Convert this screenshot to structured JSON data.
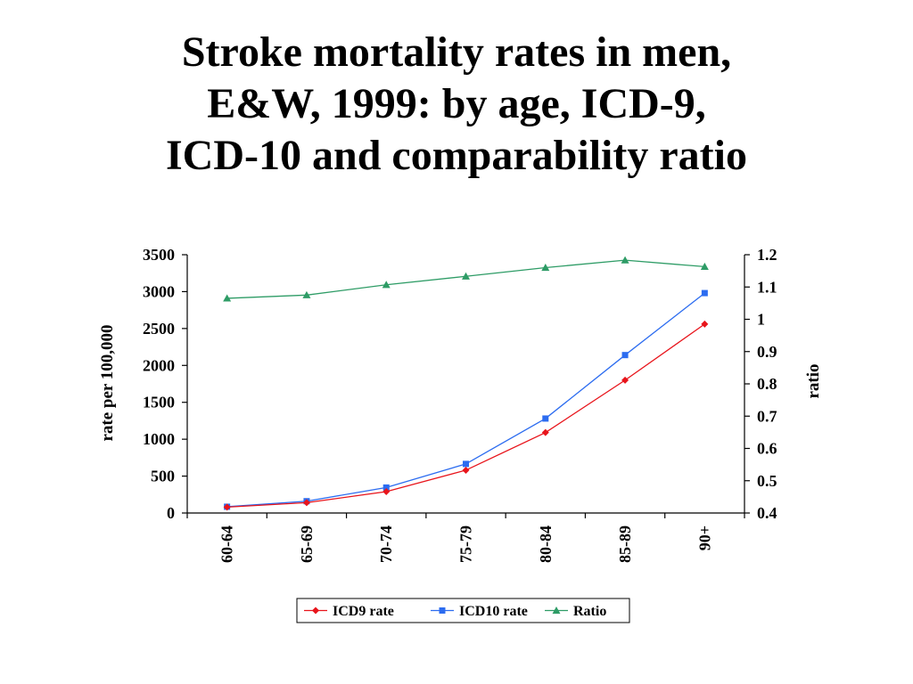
{
  "slide": {
    "title_lines": [
      "Stroke mortality rates in men,",
      "E&W, 1999: by age, ICD-9,",
      "ICD-10 and comparability ratio"
    ]
  },
  "chart_data": {
    "type": "line",
    "categories": [
      "60-64",
      "65-69",
      "70-74",
      "75-79",
      "80-84",
      "85-89",
      "90+"
    ],
    "y_left": {
      "label": "rate per 100,000",
      "range": [
        0,
        3500
      ],
      "ticks": [
        "0",
        "500",
        "1000",
        "1500",
        "2000",
        "2500",
        "3000",
        "3500"
      ]
    },
    "y_right": {
      "label": "ratio",
      "range": [
        0.4,
        1.2
      ],
      "ticks": [
        "0.4",
        "0.5",
        "0.6",
        "0.7",
        "0.8",
        "0.9",
        "1",
        "1.1",
        "1.2"
      ]
    },
    "grid": false,
    "legend_position": "bottom",
    "series": [
      {
        "name": "ICD9 rate",
        "axis": "left",
        "color": "#e8141b",
        "marker": "diamond",
        "values": [
          80,
          140,
          290,
          580,
          1090,
          1800,
          2560
        ]
      },
      {
        "name": "ICD10 rate",
        "axis": "left",
        "color": "#2c6cf0",
        "marker": "square",
        "values": [
          85,
          160,
          345,
          665,
          1280,
          2140,
          2980
        ]
      },
      {
        "name": "Ratio",
        "axis": "right",
        "color": "#2e9c66",
        "marker": "triangle",
        "values": [
          1.065,
          1.075,
          1.107,
          1.133,
          1.16,
          1.183,
          1.163
        ]
      }
    ]
  }
}
